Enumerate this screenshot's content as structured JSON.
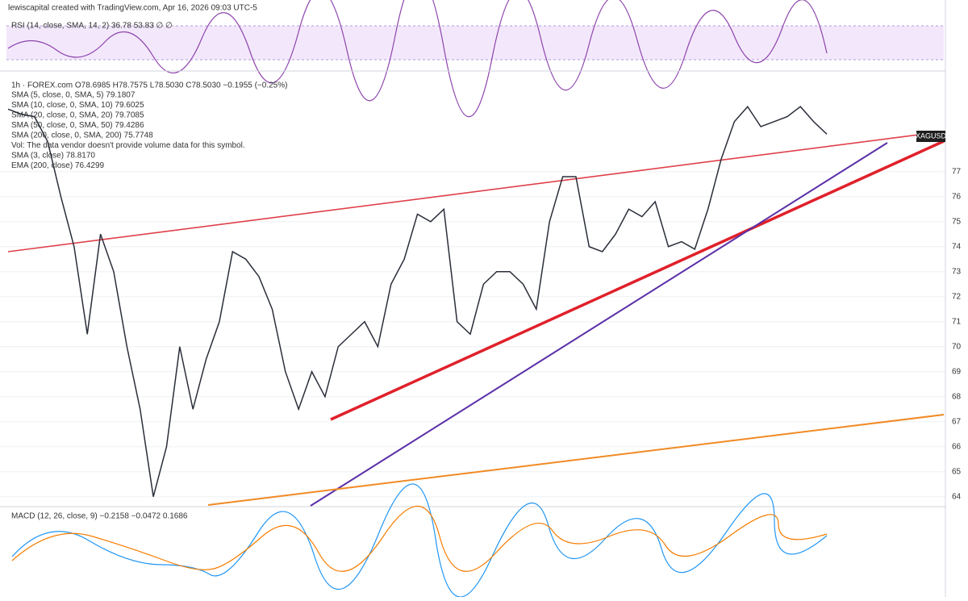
{
  "chart_data": {
    "type": "line",
    "title": "lewiscapital created with TradingView.com, Apr 16, 2026 09:03 UTC-5",
    "subtitle": "1h · FOREX.com  O78.6985  H78.7575  L78.5030  C78.5030  −0.1955 (−0.25%)",
    "annotations": [
      "SMA (5, close, 0, SMA, 5)  79.1807",
      "SMA (10, close, 0, SMA, 10)  79.6025",
      "SMA (20, close, 0, SMA, 20)  79.7085",
      "SMA (50, close, 0, SMA, 50)  79.4286",
      "SMA (200, close, 0, SMA, 200)  75.7748",
      "Vol: The data vendor doesn't provide volume data for this symbol.",
      "SMA (3, close)  78.8170",
      "EMA (200, close)  76.4299",
      "RSI (14, close, SMA, 14, 2)  36.78  53.83  ∅  ∅",
      "MACD (12, 26, close, 9)  −0.2158  −0.0472  0.1686"
    ],
    "series": [
      {
        "name": "XAGUSD",
        "color": "#2a2e39",
        "values": [
          79.5,
          79.3,
          79.2,
          78.2,
          76,
          74,
          70.5,
          74.5,
          73,
          70,
          67.5,
          64,
          66,
          70,
          67.5,
          69.5,
          71,
          73.8,
          73.5,
          72.8,
          71.5,
          69,
          67.5,
          69,
          68,
          70,
          70.5,
          71,
          70,
          72.5,
          73.5,
          75.3,
          75,
          75.5,
          71,
          70.5,
          72.5,
          73,
          73,
          72.5,
          71.5,
          75,
          76.8,
          76.8,
          74,
          73.8,
          74.5,
          75.5,
          75.2,
          75.8,
          74,
          74.2,
          73.9,
          75.5,
          77.5,
          79,
          79.6,
          78.8,
          79,
          79.2,
          79.6,
          79,
          78.5
        ]
      }
    ],
    "ylim": [
      63.7,
      80.8
    ],
    "yticks": [
      64,
      65,
      66,
      67,
      68,
      69,
      70,
      71,
      72,
      73,
      74,
      75,
      76,
      77
    ],
    "grid": true
  }
}
